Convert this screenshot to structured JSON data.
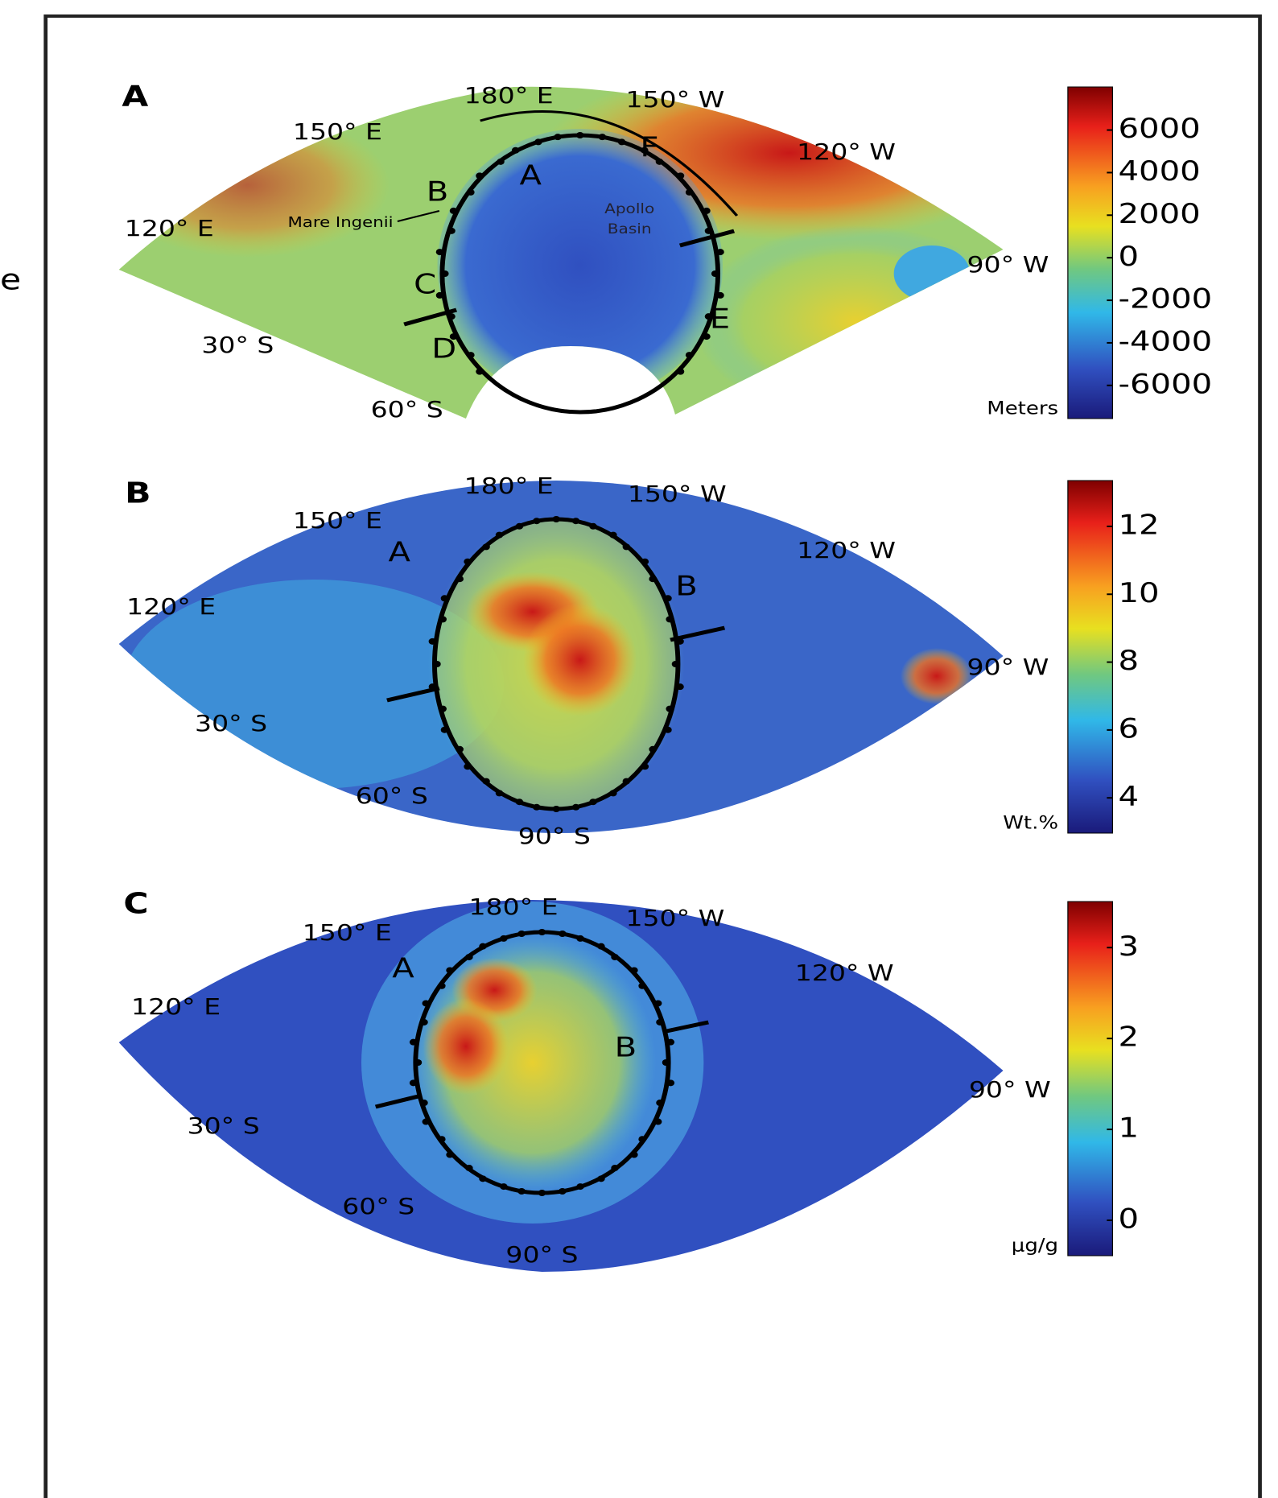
{
  "stray_text": "e",
  "panels": [
    {
      "label": "A",
      "map_labels": [
        "180° E",
        "150° W",
        "150° E",
        "120° W",
        "120° E",
        "90° W",
        "30° S",
        "60° S"
      ],
      "region_labels": [
        "A",
        "B",
        "C",
        "D",
        "E",
        "F"
      ],
      "annotations": [
        "Mare Ingenii",
        "Apollo",
        "Basin"
      ],
      "colorbar": {
        "ticks": [
          6000,
          4000,
          2000,
          0,
          -2000,
          -4000,
          -6000
        ],
        "unit": "Meters"
      }
    },
    {
      "label": "B",
      "map_labels": [
        "180° E",
        "150° W",
        "150° E",
        "120° W",
        "120° E",
        "90° W",
        "30° S",
        "60° S",
        "90° S"
      ],
      "region_labels": [
        "A",
        "B"
      ],
      "colorbar": {
        "ticks": [
          12,
          10,
          8,
          6,
          4
        ],
        "unit": "Wt.%"
      }
    },
    {
      "label": "C",
      "map_labels": [
        "180° E",
        "150° W",
        "150° E",
        "120° W",
        "120° E",
        "90° W",
        "30° S",
        "60° S",
        "90° S"
      ],
      "region_labels": [
        "A",
        "B"
      ],
      "colorbar": {
        "ticks": [
          3,
          2,
          1,
          0
        ],
        "unit": "μg/g"
      }
    }
  ]
}
